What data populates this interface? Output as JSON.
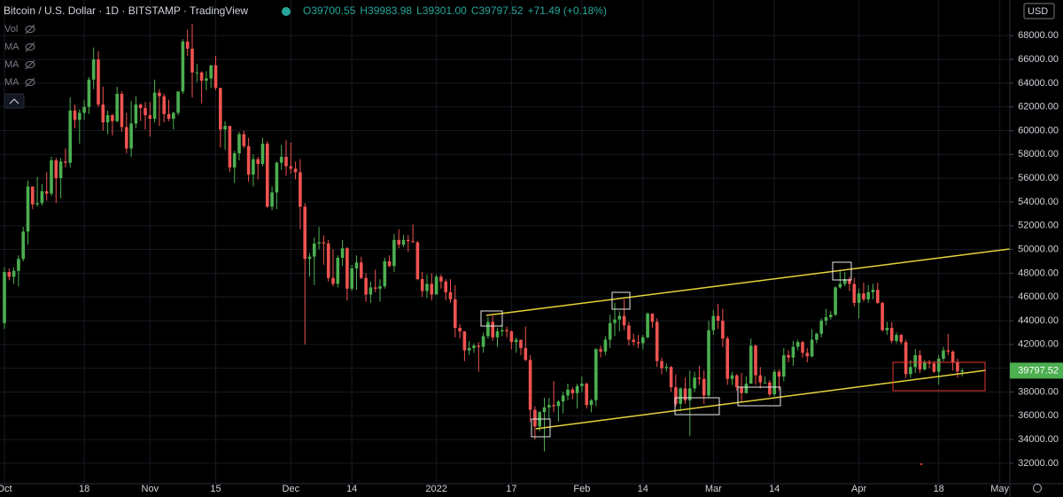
{
  "chart_data": {
    "type": "candlestick",
    "title": "Bitcoin / U.S. Dollar · 1D · BITSTAMP · TradingView",
    "legend": [
      "O39700.55",
      "H39983.98",
      "L39301.00",
      "C39797.52",
      "+71.49 (+0.18%)"
    ],
    "indicators": [
      "Vol",
      "MA",
      "MA",
      "MA"
    ],
    "currency": "USD",
    "up_color": "#4caf50",
    "down_color": "#ef5350",
    "categories": [
      "Oct",
      null,
      null,
      null,
      null,
      null,
      null,
      null,
      null,
      null,
      null,
      null,
      null,
      null,
      null,
      null,
      null,
      "18",
      null,
      null,
      null,
      null,
      null,
      null,
      null,
      null,
      null,
      null,
      null,
      null,
      null,
      "Nov",
      null,
      null,
      null,
      null,
      null,
      null,
      null,
      null,
      null,
      null,
      null,
      null,
      null,
      "15",
      null,
      null,
      null,
      null,
      null,
      null,
      null,
      null,
      null,
      null,
      null,
      null,
      null,
      null,
      null,
      "Dec",
      null,
      null,
      null,
      null,
      null,
      null,
      null,
      null,
      null,
      null,
      null,
      null,
      "14",
      null,
      null,
      null,
      null,
      null,
      null,
      null,
      null,
      null,
      null,
      null,
      null,
      null,
      null,
      null,
      null,
      null,
      "2022",
      null,
      null,
      null,
      null,
      null,
      null,
      null,
      null,
      null,
      null,
      null,
      null,
      null,
      null,
      null,
      "17",
      null,
      null,
      null,
      null,
      null,
      null,
      null,
      null,
      null,
      null,
      null,
      null,
      null,
      null,
      "Feb",
      null,
      null,
      null,
      null,
      null,
      null,
      null,
      null,
      null,
      null,
      null,
      null,
      "14",
      null,
      null,
      null,
      null,
      null,
      null,
      null,
      null,
      null,
      null,
      null,
      null,
      null,
      null,
      "Mar",
      null,
      null,
      null,
      null,
      null,
      null,
      null,
      null,
      null,
      null,
      null,
      null,
      "14",
      null,
      null,
      null,
      null,
      null,
      null,
      null,
      null,
      null,
      null,
      null,
      null,
      null,
      null,
      null,
      null,
      null,
      "Apr",
      null,
      null,
      null,
      null,
      null,
      null,
      null,
      null,
      null,
      null,
      null,
      null,
      null,
      null,
      null,
      null,
      "18",
      null,
      null,
      null,
      null,
      null,
      null,
      null,
      null,
      null,
      null,
      null,
      null,
      "May"
    ],
    "open": [
      43800,
      48100,
      47700,
      48200,
      49200,
      51500,
      55300,
      53800,
      53900,
      54900,
      54700,
      57500,
      56000,
      57400,
      57300,
      61700,
      60900,
      61500,
      62000,
      64300,
      66000,
      62200,
      60700,
      61300,
      60800,
      63100,
      60300,
      58500,
      60600,
      62200,
      61900,
      61300,
      61000,
      63200,
      62900,
      61400,
      61000,
      61500,
      63300,
      67500,
      66900,
      64900,
      64900,
      64200,
      64400,
      65500,
      63600,
      60100,
      60400,
      56900,
      58100,
      59700,
      58700,
      56300,
      57600,
      57200,
      58900,
      53600,
      54800,
      57300,
      57800,
      57000,
      56800,
      56500,
      53600,
      49200,
      49400,
      50500,
      50600,
      50500,
      47600,
      47100,
      49300,
      50100,
      46700,
      48400,
      48900,
      47600,
      46200,
      46800,
      46700,
      46900,
      49000,
      48600,
      50800,
      50400,
      50800,
      50700,
      50600,
      47500,
      46500,
      47100,
      46200,
      47700,
      47300,
      46400,
      45800,
      43400,
      43100,
      41500,
      41700,
      41900,
      41800,
      42700,
      43900,
      42600,
      43100,
      43200,
      43100,
      42200,
      42400,
      41700,
      40700,
      36500,
      35100,
      36300,
      36700,
      36900,
      36800,
      37200,
      37700,
      38200,
      37900,
      38500,
      38700,
      36900,
      37300,
      41600,
      41400,
      42400,
      43800,
      44100,
      44400,
      43600,
      42400,
      42200,
      42100,
      42600,
      44600,
      43900,
      40600,
      40000,
      40100,
      38400,
      37000,
      38300,
      37300,
      38300,
      39200,
      39100,
      37700,
      43200,
      44400,
      44000,
      42500,
      39100,
      39400,
      38400,
      37900,
      38700,
      41900,
      39400,
      38800,
      38800,
      37800,
      39700,
      39300,
      41100,
      40900,
      41800,
      42200,
      41300,
      41000,
      42400,
      42900,
      44000,
      44300,
      44500,
      46800,
      47100,
      47500,
      47100,
      45500,
      46300,
      45800,
      46400,
      46600,
      45500,
      43200,
      43400,
      42300,
      42800,
      42200,
      39500,
      40100,
      41100,
      39900,
      40500,
      40400,
      39700,
      40800,
      41500,
      41400,
      40500,
      39700.55,
      null,
      null,
      null,
      null,
      null,
      null,
      null,
      null
    ],
    "high": [
      48500,
      48400,
      48500,
      49500,
      51900,
      55800,
      55300,
      56100,
      55500,
      56500,
      57800,
      57700,
      57700,
      58500,
      62800,
      62200,
      61800,
      62600,
      64500,
      67000,
      66700,
      63700,
      61700,
      61400,
      63700,
      63300,
      61500,
      62500,
      62900,
      62300,
      62400,
      62400,
      64300,
      63500,
      63100,
      62600,
      61600,
      63300,
      67700,
      68500,
      69000,
      65600,
      65000,
      65000,
      65500,
      66300,
      63600,
      60800,
      60400,
      58300,
      59900,
      60000,
      59400,
      58000,
      57800,
      59400,
      59100,
      55300,
      57400,
      58800,
      59200,
      59000,
      57400,
      57600,
      53900,
      49700,
      51000,
      51900,
      51200,
      50800,
      50000,
      49500,
      50800,
      50200,
      48700,
      49500,
      49400,
      48000,
      47300,
      48300,
      47500,
      49300,
      49500,
      51300,
      51700,
      51200,
      51200,
      52100,
      50700,
      48100,
      47900,
      48000,
      47900,
      47900,
      47500,
      47500,
      47000,
      43700,
      43100,
      42300,
      42100,
      42200,
      43000,
      44300,
      44400,
      43400,
      43700,
      43500,
      43200,
      42600,
      42200,
      43500,
      41100,
      36800,
      36400,
      37500,
      37500,
      38900,
      37300,
      38000,
      38700,
      38400,
      38700,
      39300,
      38800,
      37400,
      41700,
      41900,
      42700,
      44500,
      45500,
      44800,
      45800,
      43900,
      42900,
      42800,
      42800,
      44700,
      44600,
      44200,
      40900,
      40400,
      40200,
      39500,
      38400,
      39200,
      39800,
      39700,
      40200,
      39800,
      44000,
      44900,
      45400,
      45000,
      42700,
      39700,
      39500,
      39600,
      39300,
      42500,
      42000,
      40100,
      39300,
      39000,
      39900,
      39900,
      41700,
      41500,
      42300,
      42400,
      42300,
      41700,
      43300,
      43000,
      44200,
      45000,
      44800,
      46900,
      48200,
      48100,
      47700,
      47600,
      46700,
      47200,
      47000,
      47100,
      47200,
      45600,
      43900,
      43900,
      43000,
      42900,
      42400,
      40700,
      41600,
      41500,
      40700,
      40700,
      40600,
      41100,
      41800,
      42900,
      41500,
      40800,
      39983.98,
      null,
      null,
      null,
      null,
      null,
      null,
      null,
      null
    ],
    "low": [
      43300,
      47400,
      47100,
      46900,
      49000,
      50400,
      53400,
      53600,
      53700,
      54100,
      54500,
      53900,
      54300,
      56900,
      56900,
      60200,
      58900,
      60900,
      61400,
      63500,
      62000,
      60000,
      59700,
      59600,
      60700,
      59900,
      58100,
      57800,
      60200,
      60800,
      60100,
      59500,
      60700,
      60400,
      60700,
      60800,
      60100,
      61300,
      63100,
      66300,
      62800,
      64100,
      62300,
      63400,
      63600,
      63400,
      58600,
      58400,
      56500,
      55600,
      57500,
      58500,
      55700,
      55300,
      55900,
      57000,
      53500,
      53300,
      53400,
      56700,
      56200,
      56400,
      55900,
      51700,
      42000,
      47700,
      47000,
      50000,
      48700,
      47300,
      46900,
      46800,
      48600,
      45700,
      46500,
      46600,
      47500,
      45600,
      45500,
      46400,
      45600,
      46700,
      48500,
      48100,
      50100,
      50200,
      49800,
      50600,
      47400,
      46000,
      45900,
      45700,
      46200,
      46700,
      45700,
      45500,
      42600,
      42500,
      40600,
      41100,
      41300,
      39700,
      41300,
      42500,
      42300,
      41800,
      42700,
      42600,
      41600,
      41300,
      41100,
      40600,
      35500,
      34000,
      34700,
      33000,
      35700,
      36300,
      35500,
      36200,
      37300,
      37400,
      36600,
      38000,
      36600,
      36300,
      36800,
      40900,
      41100,
      41700,
      42700,
      43100,
      43200,
      41900,
      41900,
      41700,
      41600,
      42500,
      43400,
      40100,
      39500,
      39700,
      38000,
      36800,
      36400,
      37000,
      34300,
      38000,
      38600,
      37000,
      37500,
      42800,
      43300,
      41800,
      38600,
      38600,
      38100,
      37100,
      37900,
      38700,
      38600,
      38300,
      38700,
      37600,
      37600,
      38100,
      38900,
      40500,
      40200,
      41500,
      40900,
      40500,
      40900,
      42100,
      42600,
      43600,
      44100,
      44400,
      46700,
      46900,
      46500,
      45200,
      44200,
      45600,
      45500,
      45800,
      45400,
      43100,
      42800,
      42100,
      42100,
      42000,
      39200,
      39200,
      39600,
      39600,
      39800,
      40000,
      39600,
      38600,
      40600,
      41100,
      39800,
      39200,
      39301,
      null,
      null,
      null,
      null,
      null,
      null,
      null,
      null
    ],
    "close": [
      48100,
      47700,
      48200,
      49200,
      51500,
      55300,
      53800,
      53900,
      54900,
      54700,
      57500,
      56000,
      57400,
      57300,
      61700,
      60900,
      61500,
      62000,
      64300,
      66000,
      62200,
      60700,
      61300,
      60800,
      63100,
      60300,
      58500,
      60600,
      62200,
      61900,
      61300,
      61000,
      63200,
      62900,
      61400,
      61000,
      61500,
      63300,
      67500,
      66900,
      64900,
      64900,
      64200,
      64400,
      65500,
      63600,
      60100,
      60400,
      56900,
      58100,
      59700,
      58700,
      56300,
      57600,
      57200,
      58900,
      53600,
      54800,
      57300,
      57800,
      57000,
      56800,
      56500,
      53600,
      49200,
      49400,
      50500,
      50600,
      50500,
      47600,
      47100,
      49300,
      50100,
      46700,
      48400,
      48900,
      47600,
      46200,
      46800,
      46700,
      46900,
      49000,
      48600,
      50800,
      50400,
      50800,
      50700,
      50600,
      47500,
      46500,
      47100,
      46200,
      47700,
      47300,
      46400,
      45800,
      43400,
      43100,
      41500,
      41700,
      41900,
      41800,
      42700,
      43900,
      42600,
      43100,
      43200,
      43100,
      42200,
      42400,
      41700,
      40700,
      36500,
      35100,
      36300,
      36700,
      36900,
      36800,
      37200,
      37700,
      38200,
      37900,
      38500,
      38700,
      36900,
      37300,
      41600,
      41400,
      42400,
      43800,
      44100,
      44400,
      43600,
      42400,
      42200,
      42100,
      42600,
      44600,
      43900,
      40600,
      40000,
      40100,
      38400,
      37000,
      38300,
      37300,
      38300,
      39200,
      39100,
      37700,
      43200,
      44400,
      44000,
      42500,
      39100,
      39400,
      38400,
      37900,
      38700,
      41900,
      39400,
      38800,
      38800,
      37800,
      39700,
      39300,
      41100,
      40900,
      41800,
      42200,
      41300,
      41000,
      42400,
      42900,
      44000,
      44300,
      44500,
      46800,
      47100,
      47500,
      47100,
      45500,
      46300,
      45800,
      46400,
      46600,
      45500,
      43200,
      43400,
      42300,
      42800,
      42200,
      39500,
      40100,
      41100,
      39900,
      40500,
      40400,
      39700,
      40800,
      41500,
      41400,
      40500,
      39726.03,
      39797.52,
      null,
      null,
      null,
      null,
      null,
      null,
      null,
      null
    ],
    "ylim": [
      30500,
      71000
    ],
    "yticks": [
      {
        "value": 32000,
        "label": "32000.00"
      },
      {
        "value": 34000,
        "label": "34000.00"
      },
      {
        "value": 36000,
        "label": "36000.00"
      },
      {
        "value": 38000,
        "label": "38000.00"
      },
      {
        "value": 40000,
        "label": "40000.00"
      },
      {
        "value": 42000,
        "label": "42000.00"
      },
      {
        "value": 44000,
        "label": "44000.00"
      },
      {
        "value": 46000,
        "label": "46000.00"
      },
      {
        "value": 48000,
        "label": "48000.00"
      },
      {
        "value": 50000,
        "label": "50000.00"
      },
      {
        "value": 52000,
        "label": "52000.00"
      },
      {
        "value": 54000,
        "label": "54000.00"
      },
      {
        "value": 56000,
        "label": "56000.00"
      },
      {
        "value": 58000,
        "label": "58000.00"
      },
      {
        "value": 60000,
        "label": "60000.00"
      },
      {
        "value": 62000,
        "label": "62000.00"
      },
      {
        "value": 64000,
        "label": "64000.00"
      },
      {
        "value": 66000,
        "label": "66000.00"
      },
      {
        "value": 68000,
        "label": "68000.00"
      }
    ],
    "grid": true
  }
}
